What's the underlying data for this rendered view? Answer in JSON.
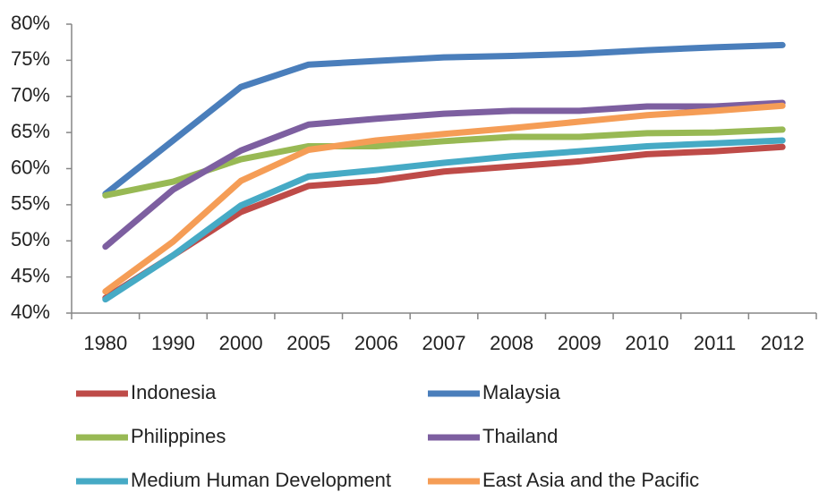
{
  "chart_data": {
    "type": "line",
    "categories": [
      "1980",
      "1990",
      "2000",
      "2005",
      "2006",
      "2007",
      "2008",
      "2009",
      "2010",
      "2011",
      "2012"
    ],
    "series": [
      {
        "name": "Indonesia",
        "color": "#be4b48",
        "values": [
          42.1,
          48,
          54,
          57.6,
          58.3,
          59.6,
          60.3,
          61,
          62,
          62.4,
          63
        ]
      },
      {
        "name": "Malaysia",
        "color": "#4a7ebb",
        "values": [
          56.5,
          63.9,
          71.3,
          74.4,
          74.9,
          75.4,
          75.6,
          75.9,
          76.4,
          76.8,
          77.1
        ]
      },
      {
        "name": "Philippines",
        "color": "#98b954",
        "values": [
          56.3,
          58.2,
          61.3,
          63.1,
          63.1,
          63.8,
          64.4,
          64.4,
          64.9,
          65,
          65.4
        ]
      },
      {
        "name": "Thailand",
        "color": "#7d5fa0",
        "values": [
          49.2,
          57.1,
          62.5,
          66.1,
          66.9,
          67.6,
          68,
          68,
          68.6,
          68.6,
          69.1
        ]
      },
      {
        "name": "Medium Human Development",
        "color": "#46aac5",
        "values": [
          41.9,
          48,
          54.9,
          58.9,
          59.8,
          60.8,
          61.7,
          62.4,
          63.1,
          63.5,
          63.9
        ]
      },
      {
        "name": "East Asia and the Pacific",
        "color": "#f59d56",
        "values": [
          43,
          49.9,
          58.3,
          62.6,
          63.9,
          64.8,
          65.6,
          66.5,
          67.4,
          68,
          68.7
        ]
      }
    ],
    "ylim": [
      40,
      80
    ],
    "yticks": [
      {
        "value": 40,
        "label": "40%"
      },
      {
        "value": 45,
        "label": "45%"
      },
      {
        "value": 50,
        "label": "50%"
      },
      {
        "value": 55,
        "label": "55%"
      },
      {
        "value": 60,
        "label": "60%"
      },
      {
        "value": 65,
        "label": "65%"
      },
      {
        "value": 70,
        "label": "70%"
      },
      {
        "value": 75,
        "label": "75%"
      },
      {
        "value": 80,
        "label": "80%"
      }
    ],
    "legend": "bottom"
  }
}
